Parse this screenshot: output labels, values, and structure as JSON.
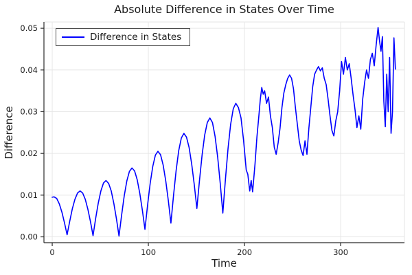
{
  "figure": {
    "title": "Absolute Difference in States Over Time",
    "xlabel": "Time",
    "ylabel": "Difference",
    "legend_label": "Difference in States"
  },
  "colors": {
    "series": "#0000ff",
    "grid": "#e6e6e6",
    "spine": "#2a2a2a",
    "text": "#1c1c1c",
    "legend_border": "#4a4a4a",
    "background": "#ffffff"
  },
  "chart_data": {
    "type": "line",
    "title": "Absolute Difference in States Over Time",
    "xlabel": "Time",
    "ylabel": "Difference",
    "grid": true,
    "legend_position": "top-left",
    "xlim": [
      -8.6,
      366.4
    ],
    "ylim": [
      -0.0014,
      0.0515
    ],
    "xticks": {
      "values": [
        0,
        100,
        200,
        300
      ],
      "labels": [
        "0",
        "100",
        "200",
        "300"
      ]
    },
    "yticks": {
      "values": [
        0,
        0.01,
        0.02,
        0.03,
        0.04,
        0.05
      ],
      "labels": [
        "0.00",
        "0.01",
        "0.02",
        "0.03",
        "0.04",
        "0.05"
      ]
    },
    "series": [
      {
        "name": "Difference in States",
        "color": "#0000ff",
        "points": [
          [
            0,
            0.0095
          ],
          [
            2,
            0.0096
          ],
          [
            4.7,
            0.0092
          ],
          [
            7.4,
            0.0079
          ],
          [
            10.1,
            0.0059
          ],
          [
            12.8,
            0.0033
          ],
          [
            15.5,
            0.0005
          ],
          [
            18.2,
            0.0037
          ],
          [
            20.9,
            0.0067
          ],
          [
            23.6,
            0.009
          ],
          [
            26.3,
            0.0105
          ],
          [
            29,
            0.011
          ],
          [
            31.7,
            0.0105
          ],
          [
            34.4,
            0.009
          ],
          [
            37.1,
            0.0066
          ],
          [
            39.8,
            0.0036
          ],
          [
            42.5,
            0.0003
          ],
          [
            45.2,
            0.0044
          ],
          [
            47.9,
            0.0081
          ],
          [
            50.6,
            0.011
          ],
          [
            53.3,
            0.0129
          ],
          [
            56,
            0.0135
          ],
          [
            58.7,
            0.0128
          ],
          [
            61.4,
            0.011
          ],
          [
            64.1,
            0.008
          ],
          [
            66.8,
            0.0043
          ],
          [
            69.5,
            0.0002
          ],
          [
            72.2,
            0.0052
          ],
          [
            74.9,
            0.0098
          ],
          [
            77.6,
            0.0134
          ],
          [
            80.3,
            0.0157
          ],
          [
            83,
            0.0165
          ],
          [
            85.7,
            0.0158
          ],
          [
            88.4,
            0.0137
          ],
          [
            91.1,
            0.0104
          ],
          [
            93.8,
            0.0063
          ],
          [
            96.5,
            0.0018
          ],
          [
            99.2,
            0.0076
          ],
          [
            101.9,
            0.0128
          ],
          [
            104.6,
            0.0169
          ],
          [
            107.3,
            0.0196
          ],
          [
            110,
            0.0205
          ],
          [
            112.7,
            0.0197
          ],
          [
            115.4,
            0.0172
          ],
          [
            118.1,
            0.0134
          ],
          [
            120.8,
            0.0086
          ],
          [
            123.5,
            0.0033
          ],
          [
            126.2,
            0.0099
          ],
          [
            128.9,
            0.0159
          ],
          [
            131.6,
            0.0207
          ],
          [
            134.3,
            0.0237
          ],
          [
            137,
            0.0248
          ],
          [
            139.7,
            0.0239
          ],
          [
            142.4,
            0.0214
          ],
          [
            145.1,
            0.0174
          ],
          [
            147.8,
            0.0124
          ],
          [
            150.5,
            0.0068
          ],
          [
            153.2,
            0.0135
          ],
          [
            155.9,
            0.0196
          ],
          [
            158.6,
            0.0244
          ],
          [
            161.3,
            0.0274
          ],
          [
            164,
            0.0285
          ],
          [
            166.7,
            0.0274
          ],
          [
            169.4,
            0.0241
          ],
          [
            172.1,
            0.0191
          ],
          [
            174.8,
            0.0127
          ],
          [
            177.5,
            0.0057
          ],
          [
            180.2,
            0.0138
          ],
          [
            182.9,
            0.0212
          ],
          [
            185.6,
            0.027
          ],
          [
            188.3,
            0.0307
          ],
          [
            191,
            0.032
          ],
          [
            193.7,
            0.031
          ],
          [
            196.4,
            0.0285
          ],
          [
            199.1,
            0.023
          ],
          [
            201.8,
            0.016
          ],
          [
            203.5,
            0.015
          ],
          [
            205.5,
            0.011
          ],
          [
            207,
            0.0135
          ],
          [
            208.5,
            0.0108
          ],
          [
            211,
            0.0175
          ],
          [
            213,
            0.024
          ],
          [
            215,
            0.029
          ],
          [
            216.5,
            0.033
          ],
          [
            218,
            0.0358
          ],
          [
            219.5,
            0.0342
          ],
          [
            221,
            0.035
          ],
          [
            223,
            0.032
          ],
          [
            225,
            0.0335
          ],
          [
            227,
            0.029
          ],
          [
            229,
            0.0262
          ],
          [
            231,
            0.0215
          ],
          [
            233,
            0.0198
          ],
          [
            235,
            0.0225
          ],
          [
            237,
            0.026
          ],
          [
            239,
            0.031
          ],
          [
            241,
            0.0345
          ],
          [
            243,
            0.0365
          ],
          [
            245,
            0.038
          ],
          [
            247,
            0.0388
          ],
          [
            249,
            0.038
          ],
          [
            251,
            0.0355
          ],
          [
            253,
            0.031
          ],
          [
            255,
            0.027
          ],
          [
            257,
            0.023
          ],
          [
            259,
            0.0208
          ],
          [
            261,
            0.0195
          ],
          [
            263,
            0.023
          ],
          [
            265,
            0.0198
          ],
          [
            267,
            0.026
          ],
          [
            269,
            0.031
          ],
          [
            271,
            0.036
          ],
          [
            273,
            0.039
          ],
          [
            275,
            0.04
          ],
          [
            277,
            0.0408
          ],
          [
            279,
            0.0398
          ],
          [
            281,
            0.0405
          ],
          [
            283,
            0.038
          ],
          [
            285,
            0.0365
          ],
          [
            287,
            0.033
          ],
          [
            289,
            0.029
          ],
          [
            291,
            0.0255
          ],
          [
            293,
            0.0242
          ],
          [
            295,
            0.0278
          ],
          [
            297,
            0.03
          ],
          [
            299,
            0.035
          ],
          [
            301,
            0.042
          ],
          [
            303,
            0.039
          ],
          [
            305,
            0.043
          ],
          [
            307,
            0.04
          ],
          [
            309,
            0.0415
          ],
          [
            311,
            0.038
          ],
          [
            313,
            0.034
          ],
          [
            315,
            0.0305
          ],
          [
            317,
            0.0262
          ],
          [
            319,
            0.029
          ],
          [
            321,
            0.0258
          ],
          [
            323,
            0.033
          ],
          [
            325,
            0.037
          ],
          [
            327,
            0.04
          ],
          [
            329,
            0.038
          ],
          [
            331,
            0.0425
          ],
          [
            333,
            0.044
          ],
          [
            335,
            0.041
          ],
          [
            337,
            0.046
          ],
          [
            339,
            0.0502
          ],
          [
            340.5,
            0.047
          ],
          [
            342,
            0.0445
          ],
          [
            343.5,
            0.048
          ],
          [
            345,
            0.0325
          ],
          [
            346.5,
            0.0264
          ],
          [
            348,
            0.039
          ],
          [
            349.5,
            0.03
          ],
          [
            351,
            0.043
          ],
          [
            352.5,
            0.0248
          ],
          [
            354,
            0.03
          ],
          [
            355.5,
            0.0477
          ],
          [
            357,
            0.0402
          ]
        ]
      }
    ]
  }
}
